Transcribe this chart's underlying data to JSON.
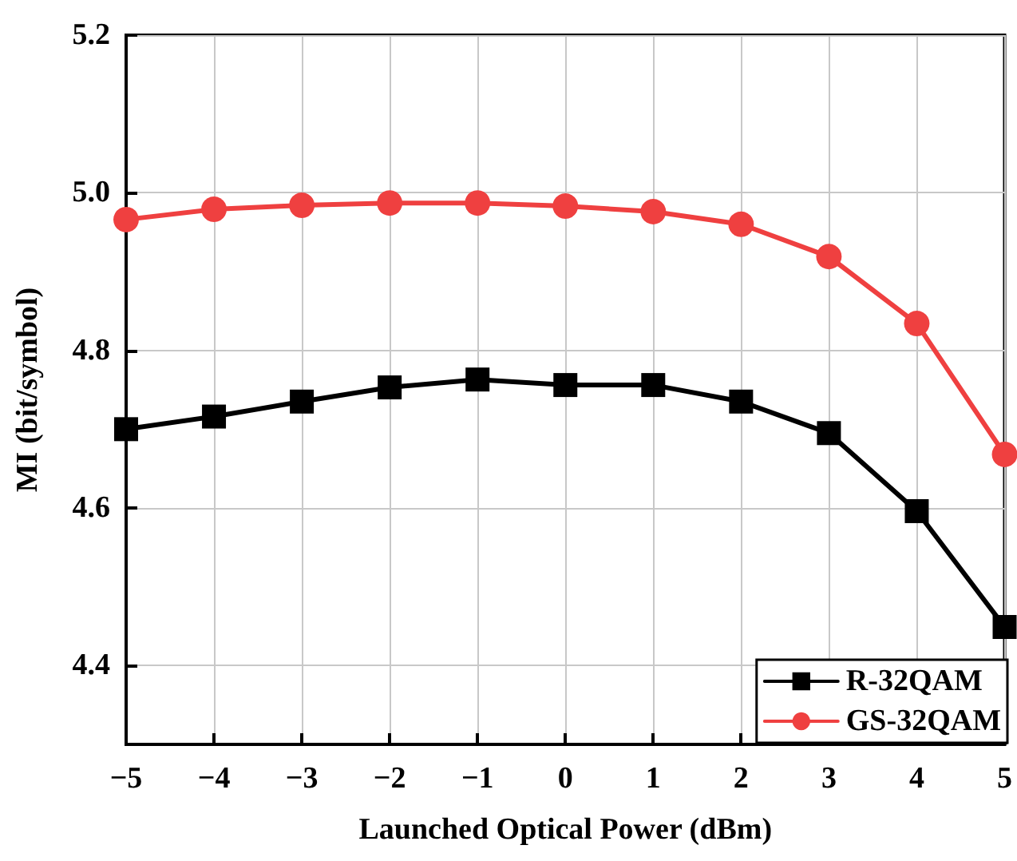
{
  "chart_data": {
    "type": "line",
    "xlabel": "Launched Optical Power (dBm)",
    "ylabel": "MI (bit/symbol)",
    "x": [
      -5,
      -4,
      -3,
      -2,
      -1,
      0,
      1,
      2,
      3,
      4,
      5
    ],
    "series": [
      {
        "name": "R-32QAM",
        "color": "#000000",
        "marker": "square",
        "values": [
          4.7,
          4.716,
          4.735,
          4.753,
          4.763,
          4.756,
          4.756,
          4.735,
          4.695,
          4.596,
          4.449
        ]
      },
      {
        "name": "GS-32QAM",
        "color": "#ef4040",
        "marker": "circle",
        "values": [
          4.966,
          4.979,
          4.984,
          4.987,
          4.987,
          4.983,
          4.976,
          4.96,
          4.919,
          4.834,
          4.668
        ]
      }
    ],
    "xlim": [
      -5,
      5
    ],
    "xticks": [
      -5,
      -4,
      -3,
      -2,
      -1,
      0,
      1,
      2,
      3,
      4,
      5
    ],
    "ylim": [
      4.3,
      5.2
    ],
    "yticks": [
      4.4,
      4.6,
      4.8,
      {
        "value": 5,
        "label": "5.0"
      },
      5.2
    ],
    "grid": true,
    "legend": "bottom right",
    "line_style": "solid"
  }
}
